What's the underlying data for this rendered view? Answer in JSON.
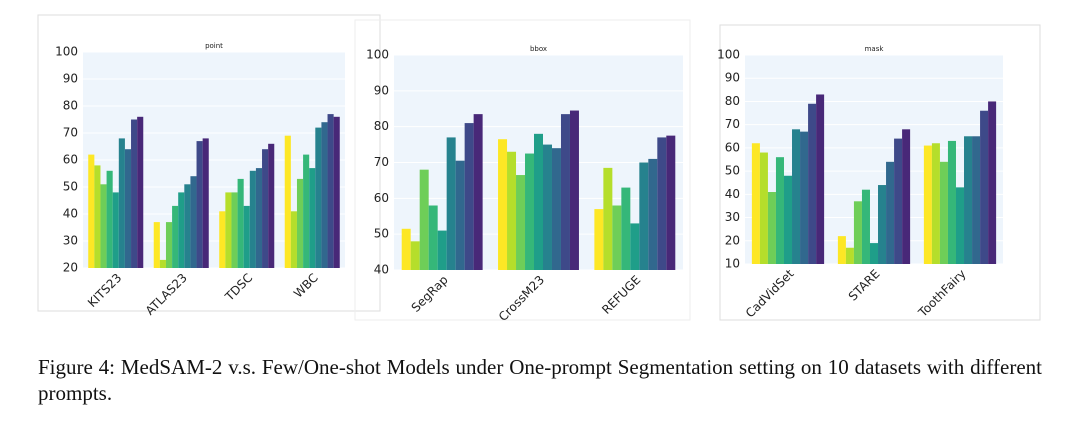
{
  "chart_data": [
    {
      "type": "bar",
      "title": "point",
      "categories": [
        "KITS23",
        "ATLAS23",
        "TDSC",
        "WBC"
      ],
      "series": [
        {
          "color": "#fde725",
          "values": [
            62,
            37,
            41,
            69
          ]
        },
        {
          "color": "#b5de2b",
          "values": [
            58,
            23,
            48,
            41
          ]
        },
        {
          "color": "#6ece58",
          "values": [
            51,
            37,
            48,
            53
          ]
        },
        {
          "color": "#35b779",
          "values": [
            56,
            43,
            53,
            62
          ]
        },
        {
          "color": "#1f9e89",
          "values": [
            48,
            48,
            43,
            57
          ]
        },
        {
          "color": "#26828e",
          "values": [
            68,
            51,
            56,
            72
          ]
        },
        {
          "color": "#31688e",
          "values": [
            64,
            54,
            57,
            74
          ]
        },
        {
          "color": "#3e4989",
          "values": [
            75,
            67,
            64,
            77
          ]
        },
        {
          "color": "#482878",
          "values": [
            76,
            68,
            66,
            76
          ]
        }
      ],
      "ylim": [
        20,
        100
      ],
      "yticks": [
        20,
        30,
        40,
        50,
        60,
        70,
        80,
        90,
        100
      ],
      "grid": true
    },
    {
      "type": "bar",
      "title": "bbox",
      "categories": [
        "SegRap",
        "CrossM23",
        "REFUGE"
      ],
      "series": [
        {
          "color": "#fde725",
          "values": [
            51.5,
            76.5,
            57
          ]
        },
        {
          "color": "#b5de2b",
          "values": [
            48,
            73,
            68.5
          ]
        },
        {
          "color": "#6ece58",
          "values": [
            68,
            66.5,
            58
          ]
        },
        {
          "color": "#35b779",
          "values": [
            58,
            72.5,
            63
          ]
        },
        {
          "color": "#1f9e89",
          "values": [
            51,
            78,
            53
          ]
        },
        {
          "color": "#26828e",
          "values": [
            77,
            75,
            70
          ]
        },
        {
          "color": "#31688e",
          "values": [
            70.5,
            74,
            71
          ]
        },
        {
          "color": "#3e4989",
          "values": [
            81,
            83.5,
            77
          ]
        },
        {
          "color": "#482878",
          "values": [
            83.5,
            84.5,
            77.5
          ]
        }
      ],
      "ylim": [
        40,
        100
      ],
      "yticks": [
        40,
        50,
        60,
        70,
        80,
        90,
        100
      ],
      "grid": true
    },
    {
      "type": "bar",
      "title": "mask",
      "categories": [
        "CadVidSet",
        "STARE",
        "ToothFairy"
      ],
      "series": [
        {
          "color": "#fde725",
          "values": [
            62,
            22,
            61
          ]
        },
        {
          "color": "#b5de2b",
          "values": [
            58,
            17,
            62
          ]
        },
        {
          "color": "#6ece58",
          "values": [
            41,
            37,
            54
          ]
        },
        {
          "color": "#35b779",
          "values": [
            56,
            42,
            63
          ]
        },
        {
          "color": "#1f9e89",
          "values": [
            48,
            19,
            43
          ]
        },
        {
          "color": "#26828e",
          "values": [
            68,
            44,
            65
          ]
        },
        {
          "color": "#31688e",
          "values": [
            67,
            54,
            65
          ]
        },
        {
          "color": "#3e4989",
          "values": [
            79,
            64,
            76
          ]
        },
        {
          "color": "#482878",
          "values": [
            83,
            68,
            80
          ]
        }
      ],
      "ylim": [
        10,
        100
      ],
      "yticks": [
        10,
        20,
        30,
        40,
        50,
        60,
        70,
        80,
        90,
        100
      ],
      "grid": true
    }
  ],
  "caption": "Figure 4: MedSAM-2 v.s. Few/One-shot Models under One-prompt Segmentation setting on 10 datasets with different prompts."
}
